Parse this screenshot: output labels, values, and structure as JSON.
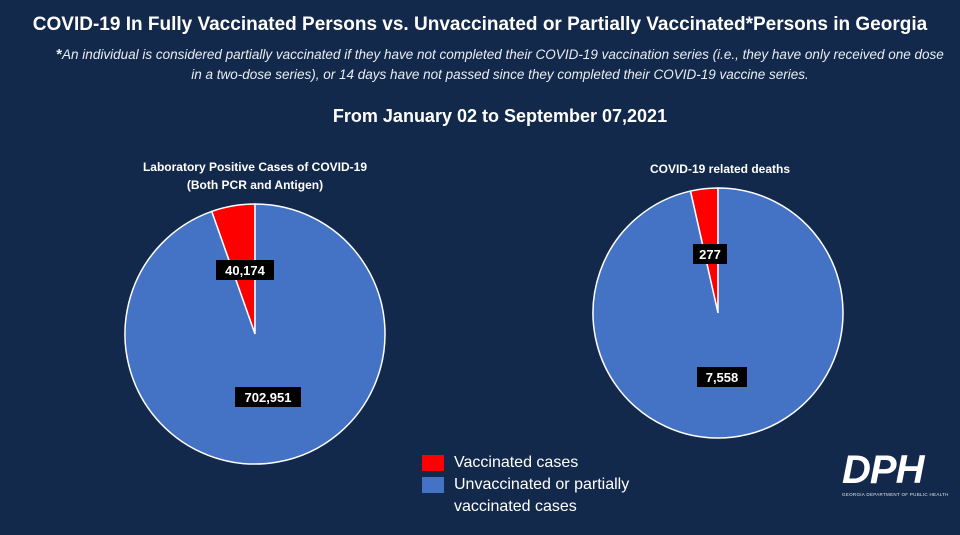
{
  "title": "COVID-19 In Fully Vaccinated Persons vs. Unvaccinated or Partially Vaccinated*Persons in Georgia",
  "footnote_star": "*",
  "footnote": "An individual is considered partially vaccinated if they have not completed their COVID-19 vaccination series (i.e., they have only received one dose in a two-dose series), or 14 days have not passed since they completed their COVID-19 vaccine series.",
  "date_range": "From January 02 to September 07,2021",
  "legend": {
    "vaccinated": "Vaccinated cases",
    "unvaccinated": "Unvaccinated or partially vaccinated cases"
  },
  "logo": {
    "mark": "DPH",
    "subtitle": "GEORGIA DEPARTMENT OF PUBLIC HEALTH"
  },
  "colors": {
    "vaccinated": "#ff0000",
    "unvaccinated": "#4472c4",
    "background": "#13294b"
  },
  "chart_data": [
    {
      "type": "pie",
      "title": "Laboratory Positive Cases of COVID-19",
      "subtitle": "(Both PCR and Antigen)",
      "categories": [
        "Vaccinated cases",
        "Unvaccinated or partially vaccinated cases"
      ],
      "values": [
        40174,
        702951
      ],
      "labels": [
        "40,174",
        "702,951"
      ]
    },
    {
      "type": "pie",
      "title": "COVID-19 related deaths",
      "categories": [
        "Vaccinated cases",
        "Unvaccinated or partially vaccinated cases"
      ],
      "values": [
        277,
        7558
      ],
      "labels": [
        "277",
        "7,558"
      ]
    }
  ]
}
